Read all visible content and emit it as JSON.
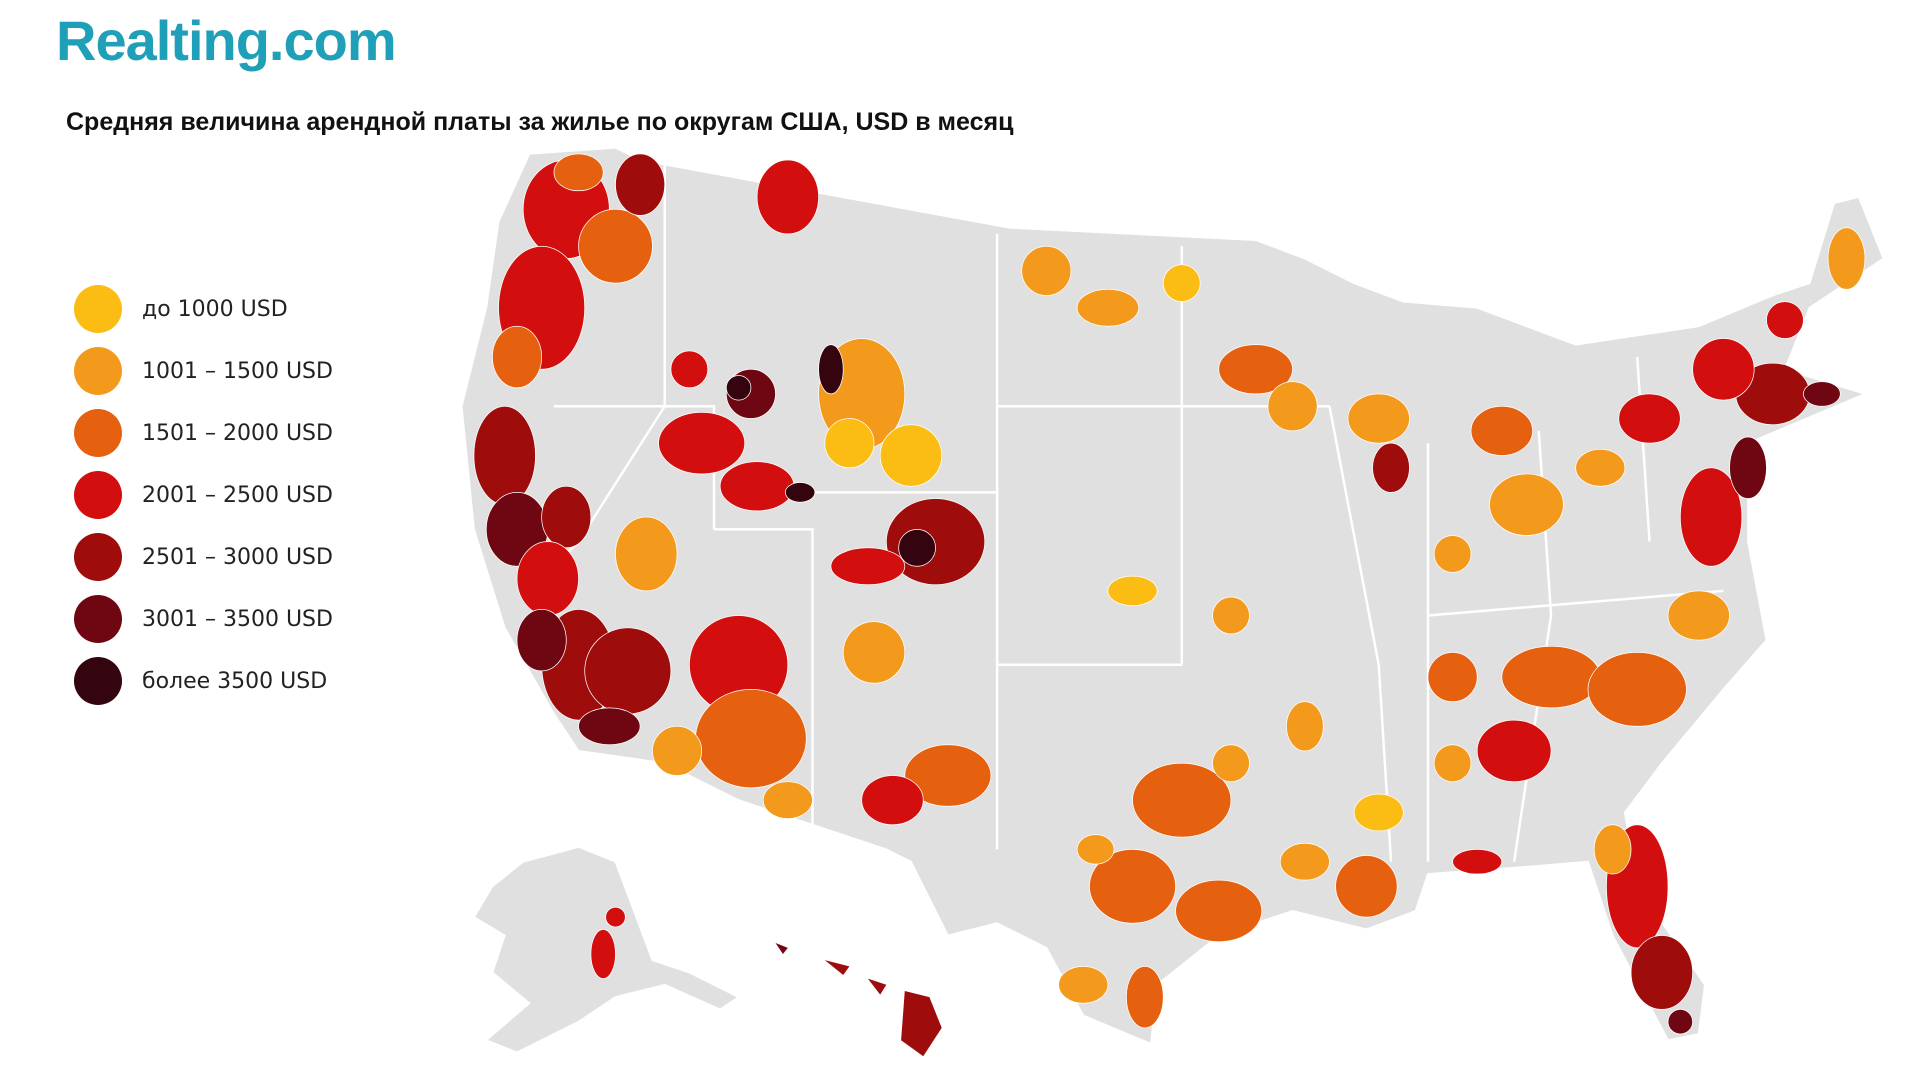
{
  "header": {
    "logo": "Realting.com",
    "title": "Средняя величина арендной платы за жилье по округам США, USD в месяц"
  },
  "legend": {
    "items": [
      {
        "label": "до 1000 USD",
        "color": "#fbbc13"
      },
      {
        "label": "1001 – 1500 USD",
        "color": "#f39a1c"
      },
      {
        "label": "1501 – 2000 USD",
        "color": "#e5600f"
      },
      {
        "label": "2001 – 2500 USD",
        "color": "#d20e0e"
      },
      {
        "label": "2501 – 3000 USD",
        "color": "#9e0c0c"
      },
      {
        "label": "3001 – 3500 USD",
        "color": "#6e0712"
      },
      {
        "label": "более 3500 USD",
        "color": "#35050f"
      }
    ]
  }
}
